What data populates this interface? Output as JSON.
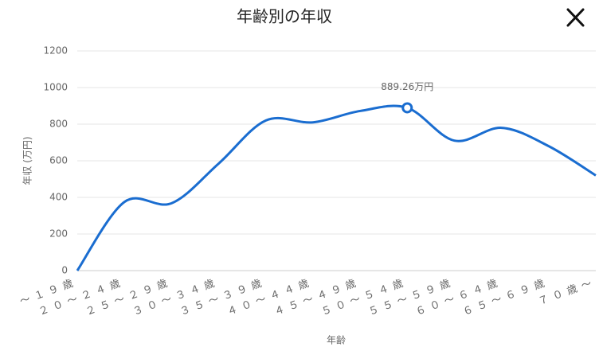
{
  "chart_data": {
    "type": "line",
    "title": "年齢別の年収",
    "categories": [
      "～１９歳",
      "２０～２４歳",
      "２５～２９歳",
      "３０～３４歳",
      "３５～３９歳",
      "４０～４４歳",
      "４５～４９歳",
      "５０～５４歳",
      "５５～５９歳",
      "６０～６４歳",
      "６５～６９歳",
      "７０歳～"
    ],
    "values": [
      0,
      375,
      368,
      585,
      820,
      810,
      872,
      889.26,
      710,
      780,
      680,
      520
    ],
    "value_labels": [
      null,
      null,
      null,
      null,
      null,
      null,
      null,
      "889.26万円",
      null,
      null,
      null,
      null
    ],
    "color": "#1a6dd0",
    "x_label": "年齢",
    "y_label": "年収 (万円)",
    "ylim": [
      0,
      1200
    ],
    "yticks": [
      0,
      200,
      400,
      600,
      800,
      1000,
      1200
    ],
    "grid": true
  }
}
